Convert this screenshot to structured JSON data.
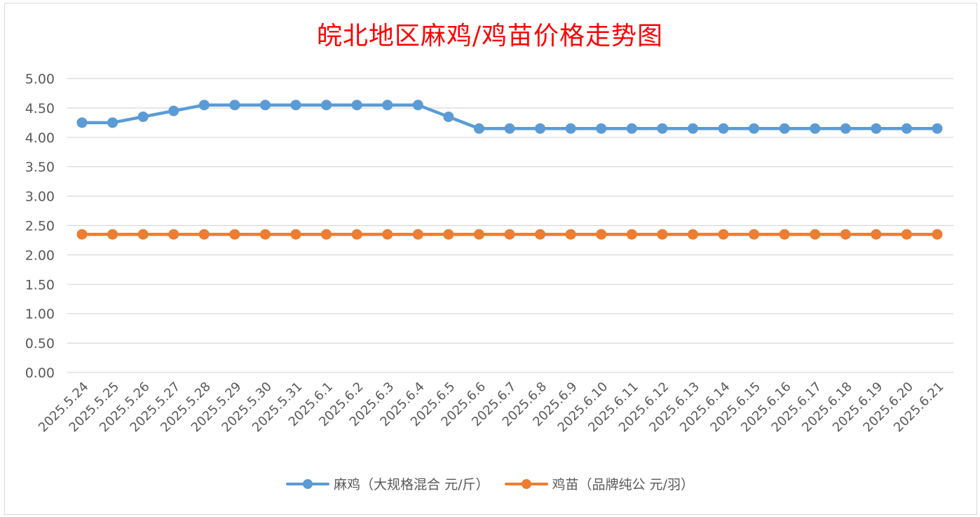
{
  "colors": {
    "title": "#ff0000",
    "series_1": "#5b9bd5",
    "series_2": "#ed7d31",
    "grid": "#d9d9d9",
    "text": "#595959"
  },
  "chart_data": {
    "type": "line",
    "title": "皖北地区麻鸡/鸡苗价格走势图",
    "xlabel": "",
    "ylabel": "",
    "ylim": [
      0,
      5
    ],
    "y_ticks": [
      "0.00",
      "0.50",
      "1.00",
      "1.50",
      "2.00",
      "2.50",
      "3.00",
      "3.50",
      "4.00",
      "4.50",
      "5.00"
    ],
    "grid": true,
    "legend_position": "bottom",
    "categories": [
      "2025.5.24",
      "2025.5.25",
      "2025.5.26",
      "2025.5.27",
      "2025.5.28",
      "2025.5.29",
      "2025.5.30",
      "2025.5.31",
      "2025.6.1",
      "2025.6.2",
      "2025.6.3",
      "2025.6.4",
      "2025.6.5",
      "2025.6.6",
      "2025.6.7",
      "2025.6.8",
      "2025.6.9",
      "2025.6.10",
      "2025.6.11",
      "2025.6.12",
      "2025.6.13",
      "2025.6.14",
      "2025.6.15",
      "2025.6.16",
      "2025.6.17",
      "2025.6.18",
      "2025.6.19",
      "2025.6.20",
      "2025.6.21"
    ],
    "series": [
      {
        "name": "麻鸡（大规格混合 元/斤）",
        "color": "#5b9bd5",
        "values": [
          4.25,
          4.25,
          4.35,
          4.45,
          4.55,
          4.55,
          4.55,
          4.55,
          4.55,
          4.55,
          4.55,
          4.55,
          4.35,
          4.15,
          4.15,
          4.15,
          4.15,
          4.15,
          4.15,
          4.15,
          4.15,
          4.15,
          4.15,
          4.15,
          4.15,
          4.15,
          4.15,
          4.15,
          4.15
        ]
      },
      {
        "name": "鸡苗（品牌纯公 元/羽）",
        "color": "#ed7d31",
        "values": [
          2.35,
          2.35,
          2.35,
          2.35,
          2.35,
          2.35,
          2.35,
          2.35,
          2.35,
          2.35,
          2.35,
          2.35,
          2.35,
          2.35,
          2.35,
          2.35,
          2.35,
          2.35,
          2.35,
          2.35,
          2.35,
          2.35,
          2.35,
          2.35,
          2.35,
          2.35,
          2.35,
          2.35,
          2.35
        ]
      }
    ]
  }
}
